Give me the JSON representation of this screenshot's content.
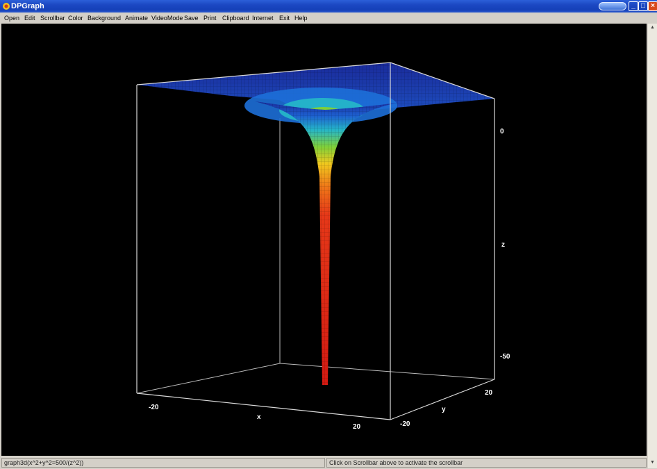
{
  "window": {
    "title": "DPGraph",
    "title_color": "#1b47c2",
    "icons": [
      "app-icon",
      "extra-feature-icon",
      "minimize-icon",
      "restore-icon",
      "close-icon"
    ]
  },
  "menu": {
    "items": [
      "Open",
      "Edit",
      "Scrollbar",
      "Color",
      "Background",
      "Animate",
      "VideoMode",
      "Save",
      "Print",
      "Clipboard",
      "Internet",
      "Exit",
      "Help"
    ]
  },
  "plot": {
    "background": "#000000",
    "equation": "x^2+y^2=500/(z^2)",
    "colors": [
      "#1a2a9a",
      "#1d5fd0",
      "#25b5c8",
      "#7fd03a",
      "#f0c81e",
      "#f07818",
      "#e63818",
      "#d41a12"
    ],
    "z_tick_labels": [
      "0",
      "-50"
    ],
    "z_axis_label": "z",
    "x_tick_labels": [
      "-20",
      "20"
    ],
    "x_axis_label": "x",
    "y_tick_labels": [
      "20",
      "-20"
    ],
    "y_axis_label": "y"
  },
  "status": {
    "left": "graph3d(x^2+y^2=500/(z^2))",
    "right": "Click on Scrollbar above to activate the scrollbar"
  }
}
